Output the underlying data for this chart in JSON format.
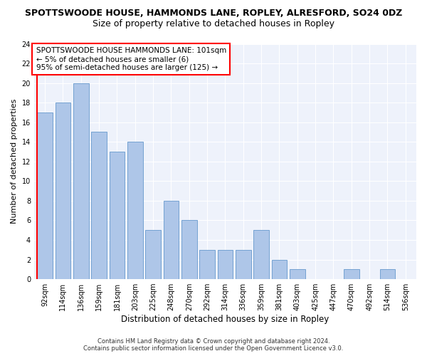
{
  "title": "SPOTTSWOODE HOUSE, HAMMONDS LANE, ROPLEY, ALRESFORD, SO24 0DZ",
  "subtitle": "Size of property relative to detached houses in Ropley",
  "xlabel": "Distribution of detached houses by size in Ropley",
  "ylabel": "Number of detached properties",
  "categories": [
    "92sqm",
    "114sqm",
    "136sqm",
    "159sqm",
    "181sqm",
    "203sqm",
    "225sqm",
    "248sqm",
    "270sqm",
    "292sqm",
    "314sqm",
    "336sqm",
    "359sqm",
    "381sqm",
    "403sqm",
    "425sqm",
    "447sqm",
    "470sqm",
    "492sqm",
    "514sqm",
    "536sqm"
  ],
  "values": [
    17,
    18,
    20,
    15,
    13,
    14,
    5,
    8,
    6,
    3,
    3,
    3,
    5,
    2,
    1,
    0,
    0,
    1,
    0,
    1,
    0
  ],
  "bar_color": "#aec6e8",
  "bar_edge_color": "#6699cc",
  "ylim": [
    0,
    24
  ],
  "yticks": [
    0,
    2,
    4,
    6,
    8,
    10,
    12,
    14,
    16,
    18,
    20,
    22,
    24
  ],
  "annotation_title": "SPOTTSWOODE HOUSE HAMMONDS LANE: 101sqm",
  "annotation_line1": "← 5% of detached houses are smaller (6)",
  "annotation_line2": "95% of semi-detached houses are larger (125) →",
  "footer1": "Contains HM Land Registry data © Crown copyright and database right 2024.",
  "footer2": "Contains public sector information licensed under the Open Government Licence v3.0.",
  "background_color": "#eef2fb",
  "title_fontsize": 9,
  "subtitle_fontsize": 9,
  "ylabel_fontsize": 8,
  "xlabel_fontsize": 8.5,
  "tick_fontsize": 7,
  "annotation_fontsize": 7.5,
  "footer_fontsize": 6
}
